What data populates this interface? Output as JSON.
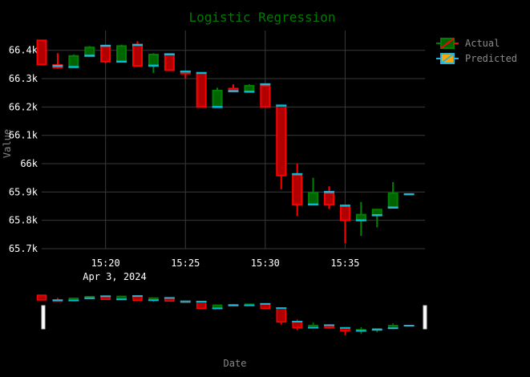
{
  "chart_data": {
    "type": "candlestick",
    "title": "Logistic Regression",
    "xlabel": "Date",
    "ylabel": "Value",
    "date_label": "Apr 3, 2024",
    "ylim": [
      65700,
      66470
    ],
    "yticks": [
      65700,
      65800,
      65900,
      66000,
      66100,
      66200,
      66300,
      66400
    ],
    "ytick_labels": [
      "65.7k",
      "65.8k",
      "65.9k",
      "66k",
      "66.1k",
      "66.2k",
      "66.3k",
      "66.4k"
    ],
    "xlim": [
      "15:16",
      "15:40"
    ],
    "xticks": [
      "15:20",
      "15:25",
      "15:30",
      "15:35"
    ],
    "grid": true,
    "legend_position": "top-right",
    "series": [
      {
        "name": "Actual",
        "increasing_color": "#008000",
        "decreasing_color": "#ff0000",
        "candles": [
          {
            "t": "15:16",
            "open": 66435,
            "high": 66435,
            "low": 66350,
            "close": 66350
          },
          {
            "t": "15:17",
            "open": 66348,
            "high": 66390,
            "low": 66335,
            "close": 66340
          },
          {
            "t": "15:18",
            "open": 66343,
            "high": 66385,
            "low": 66343,
            "close": 66380
          },
          {
            "t": "15:19",
            "open": 66380,
            "high": 66415,
            "low": 66380,
            "close": 66410
          },
          {
            "t": "15:20",
            "open": 66415,
            "high": 66420,
            "low": 66355,
            "close": 66360
          },
          {
            "t": "15:21",
            "open": 66360,
            "high": 66420,
            "low": 66360,
            "close": 66415
          },
          {
            "t": "15:22",
            "open": 66420,
            "high": 66432,
            "low": 66345,
            "close": 66345
          },
          {
            "t": "15:23",
            "open": 66345,
            "high": 66390,
            "low": 66320,
            "close": 66385
          },
          {
            "t": "15:24",
            "open": 66385,
            "high": 66385,
            "low": 66328,
            "close": 66330
          },
          {
            "t": "15:25",
            "open": 66325,
            "high": 66325,
            "low": 66300,
            "close": 66318
          },
          {
            "t": "15:26",
            "open": 66320,
            "high": 66320,
            "low": 66200,
            "close": 66200
          },
          {
            "t": "15:27",
            "open": 66200,
            "high": 66268,
            "low": 66200,
            "close": 66258
          },
          {
            "t": "15:28",
            "open": 66265,
            "high": 66280,
            "low": 66252,
            "close": 66255
          },
          {
            "t": "15:29",
            "open": 66255,
            "high": 66280,
            "low": 66255,
            "close": 66275
          },
          {
            "t": "15:30",
            "open": 66275,
            "high": 66275,
            "low": 66200,
            "close": 66200
          },
          {
            "t": "15:31",
            "open": 66205,
            "high": 66205,
            "low": 65910,
            "close": 65958
          },
          {
            "t": "15:32",
            "open": 65960,
            "high": 66000,
            "low": 65815,
            "close": 65855
          },
          {
            "t": "15:33",
            "open": 65857,
            "high": 65950,
            "low": 65857,
            "close": 65897
          },
          {
            "t": "15:34",
            "open": 65897,
            "high": 65920,
            "low": 65840,
            "close": 65855
          },
          {
            "t": "15:35",
            "open": 65850,
            "high": 65850,
            "low": 65720,
            "close": 65800
          },
          {
            "t": "15:36",
            "open": 65800,
            "high": 65865,
            "low": 65745,
            "close": 65820
          },
          {
            "t": "15:37",
            "open": 65818,
            "high": 65840,
            "low": 65775,
            "close": 65838
          },
          {
            "t": "15:38",
            "open": 65845,
            "high": 65935,
            "low": 65845,
            "close": 65895
          }
        ]
      },
      {
        "name": "Predicted",
        "increasing_color": "#ffa500",
        "decreasing_color": "#00bcd4",
        "levels": [
          {
            "t": "15:17",
            "v": 66345
          },
          {
            "t": "15:18",
            "v": 66341
          },
          {
            "t": "15:19",
            "v": 66381
          },
          {
            "t": "15:20",
            "v": 66416
          },
          {
            "t": "15:21",
            "v": 66360
          },
          {
            "t": "15:22",
            "v": 66419
          },
          {
            "t": "15:23",
            "v": 66346
          },
          {
            "t": "15:24",
            "v": 66386
          },
          {
            "t": "15:25",
            "v": 66325
          },
          {
            "t": "15:26",
            "v": 66320
          },
          {
            "t": "15:27",
            "v": 66200
          },
          {
            "t": "15:28",
            "v": 66256
          },
          {
            "t": "15:29",
            "v": 66254
          },
          {
            "t": "15:30",
            "v": 66280
          },
          {
            "t": "15:31",
            "v": 66205
          },
          {
            "t": "15:32",
            "v": 65963
          },
          {
            "t": "15:33",
            "v": 65856
          },
          {
            "t": "15:34",
            "v": 65900
          },
          {
            "t": "15:35",
            "v": 65852
          },
          {
            "t": "15:36",
            "v": 65800
          },
          {
            "t": "15:37",
            "v": 65818
          },
          {
            "t": "15:38",
            "v": 65845
          },
          {
            "t": "15:39",
            "v": 65892
          }
        ]
      }
    ]
  },
  "colors": {
    "background": "#000000",
    "grid": "#3a3a3a",
    "title": "#007a00",
    "axis_text": "#ffffff",
    "muted_text": "#888888",
    "predicted_edge": "#29b6d6"
  }
}
